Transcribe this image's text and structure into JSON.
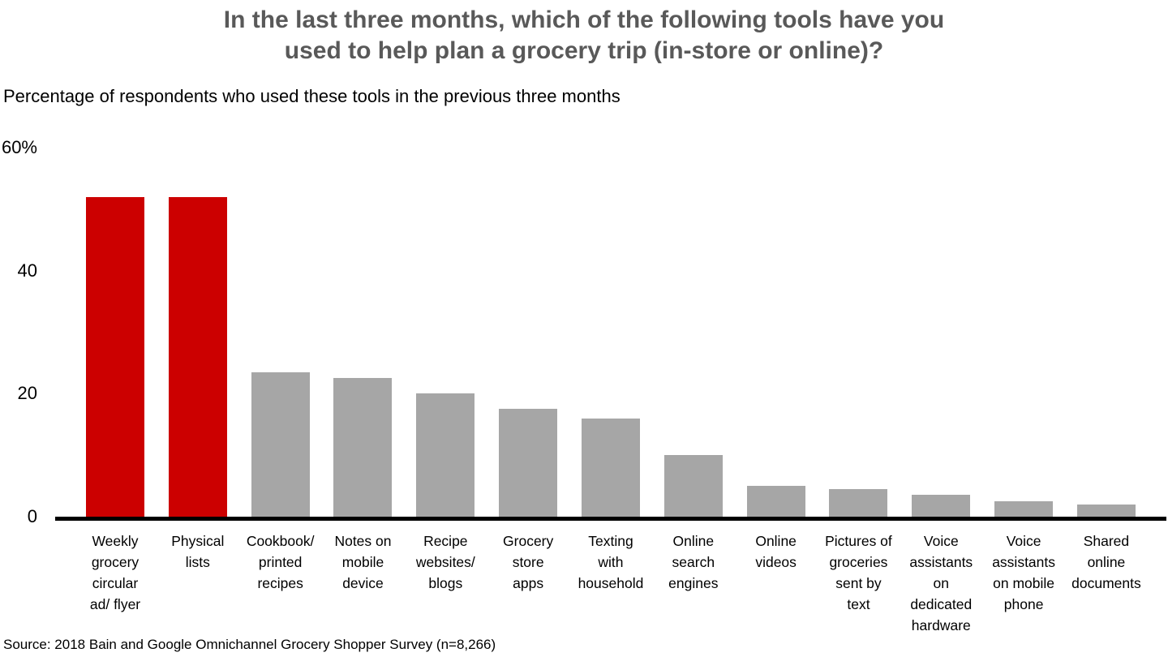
{
  "title": {
    "text": "In the last three months, which of the following tools have you\nused to help plan a grocery trip (in-store or online)?"
  },
  "subtitle": "Percentage of respondents who used these tools in the previous three months",
  "y_axis": {
    "top_label": "60%",
    "tick_40": "40",
    "tick_20": "20",
    "tick_0": "0"
  },
  "source": "Source: 2018 Bain and Google Omnichannel Grocery Shopper Survey (n=8,266)",
  "colors": {
    "highlight": "#cc0000",
    "default_bar": "#a6a6a6",
    "title_text": "#595959",
    "axis": "#000000"
  },
  "chart_data": {
    "type": "bar",
    "title": "In the last three months, which of the following tools have you used to help plan a grocery trip (in-store or online)?",
    "ylabel": "Percentage of respondents who used these tools in the previous three months",
    "xlabel": "",
    "ylim": [
      0,
      60
    ],
    "grid": false,
    "legend": "none",
    "categories": [
      "Weekly\ngrocery\ncircular\nad/ flyer",
      "Physical\nlists",
      "Cookbook/\nprinted\nrecipes",
      "Notes on\nmobile\ndevice",
      "Recipe\nwebsites/\nblogs",
      "Grocery\nstore\napps",
      "Texting\nwith\nhousehold",
      "Online\nsearch\nengines",
      "Online\nvideos",
      "Pictures of\ngroceries\nsent by\ntext",
      "Voice\nassistants\non\ndedicated\nhardware",
      "Voice\nassistants\non mobile\nphone",
      "Shared\nonline\ndocuments"
    ],
    "values": [
      52,
      52,
      23.5,
      22.5,
      20,
      17.5,
      16,
      10,
      5,
      4.5,
      3.5,
      2.5,
      2
    ],
    "bar_colors": [
      "#cc0000",
      "#cc0000",
      "#a6a6a6",
      "#a6a6a6",
      "#a6a6a6",
      "#a6a6a6",
      "#a6a6a6",
      "#a6a6a6",
      "#a6a6a6",
      "#a6a6a6",
      "#a6a6a6",
      "#a6a6a6",
      "#a6a6a6"
    ]
  }
}
